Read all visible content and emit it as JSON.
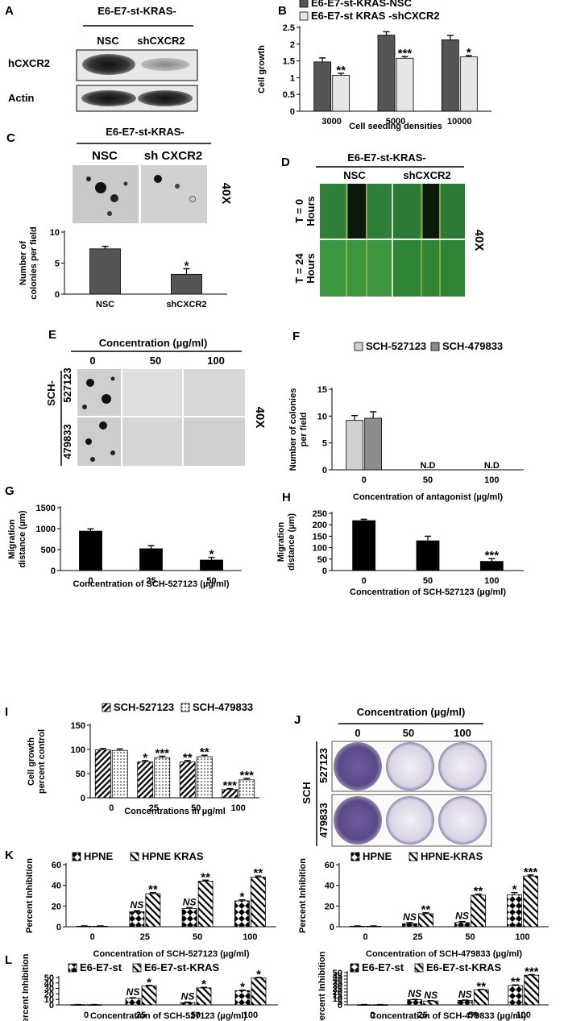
{
  "panels": {
    "A": {
      "letter": "A",
      "header": "E6-E7-st-KRAS-",
      "lanes": [
        "NSC",
        "shCXCR2"
      ],
      "rows": [
        "hCXCR2",
        "Actin"
      ]
    },
    "C": {
      "letter": "C",
      "header": "E6-E7-st-KRAS-",
      "images": [
        "NSC",
        "sh CXCR2"
      ],
      "mag": "40X"
    },
    "D": {
      "letter": "D",
      "header": "E6-E7-st-KRAS-",
      "cols": [
        "NSC",
        "shCXCR2"
      ],
      "row0": [
        "T = 0",
        "Hours"
      ],
      "row1": [
        "T = 24",
        "Hours"
      ],
      "mag": "40X"
    },
    "E": {
      "letter": "E",
      "header": "Concentration (µg/ml)",
      "cols": [
        "0",
        "50",
        "100"
      ],
      "group": "SCH-",
      "rows": [
        "527123",
        "479833"
      ],
      "mag": "40X"
    },
    "J": {
      "letter": "J",
      "header": "Concentration (µg/ml)",
      "cols": [
        "0",
        "50",
        "100"
      ],
      "group": "SCH",
      "rows": [
        "527123",
        "479833"
      ]
    }
  },
  "chart_data": [
    {
      "id": "B",
      "letter": "B",
      "type": "bar",
      "categories": [
        "3000",
        "5000",
        "10000"
      ],
      "series": [
        {
          "name": "E6-E7-st-KRAS-NSC",
          "values": [
            1.47,
            2.27,
            2.13
          ],
          "errors": [
            0.12,
            0.1,
            0.13
          ],
          "color": "#555555"
        },
        {
          "name": "E6-E7-st KRAS -shCXCR2",
          "values": [
            1.07,
            1.58,
            1.62
          ],
          "errors": [
            0.06,
            0.05,
            0.04
          ],
          "color": "#e6e6e6"
        }
      ],
      "ylabel": "Cell growth",
      "xlabel": "Cell seeding densities",
      "ylim": [
        0,
        2.5
      ],
      "yticks": [
        "0",
        "0.5",
        "1",
        "1.5",
        "2",
        "2.5"
      ],
      "annotations": [
        {
          "cat": 0,
          "s": 1,
          "text": "**"
        },
        {
          "cat": 1,
          "s": 1,
          "text": "***"
        },
        {
          "cat": 2,
          "s": 1,
          "text": "*"
        }
      ]
    },
    {
      "id": "C",
      "letter": "C",
      "type": "bar",
      "categories": [
        "NSC",
        "shCXCR2"
      ],
      "series": [
        {
          "values": [
            7.3,
            3.2
          ],
          "errors": [
            0.4,
            0.9
          ],
          "color": "#555555"
        }
      ],
      "ylabel": [
        "Number of",
        "colonies per field"
      ],
      "ylim": [
        0,
        10
      ],
      "yticks": [
        "0",
        "5",
        "10"
      ],
      "annotations": [
        {
          "cat": 1,
          "s": 0,
          "text": "*"
        }
      ]
    },
    {
      "id": "F",
      "letter": "F",
      "type": "bar",
      "categories": [
        "0",
        "50",
        "100"
      ],
      "series": [
        {
          "name": "SCH-527123",
          "values": [
            9.2,
            0,
            0
          ],
          "errors": [
            0.9,
            0,
            0
          ],
          "color": "#d0d0d0"
        },
        {
          "name": "SCH-479833",
          "values": [
            9.6,
            0,
            0
          ],
          "errors": [
            1.2,
            0,
            0
          ],
          "color": "#8c8c8c"
        }
      ],
      "ylabel": [
        "Number of colonies",
        "per field"
      ],
      "xlabel": "Concentration of antagonist (µg/ml)",
      "ylim": [
        0,
        15
      ],
      "yticks": [
        "0",
        "5",
        "10",
        "15"
      ],
      "annotations": [
        {
          "cat": 1,
          "text": "N.D"
        },
        {
          "cat": 2,
          "text": "N.D"
        }
      ]
    },
    {
      "id": "G",
      "letter": "G",
      "type": "bar",
      "categories": [
        "0",
        "25",
        "50"
      ],
      "series": [
        {
          "values": [
            940,
            520,
            250
          ],
          "errors": [
            55,
            75,
            65
          ],
          "color": "#000000"
        }
      ],
      "ylabel": [
        "Migration",
        "distance (µm)"
      ],
      "xlabel": "Concentration of SCH-527123 (µg/ml)",
      "ylim": [
        0,
        1500
      ],
      "yticks": [
        "0",
        "500",
        "1000",
        "1500"
      ],
      "annotations": [
        {
          "cat": 2,
          "s": 0,
          "text": "*"
        }
      ]
    },
    {
      "id": "H",
      "letter": "H",
      "type": "bar",
      "categories": [
        "0",
        "50",
        "100"
      ],
      "series": [
        {
          "values": [
            218,
            130,
            40
          ],
          "errors": [
            6,
            20,
            12
          ],
          "color": "#000000"
        }
      ],
      "ylabel": [
        "Migration",
        "distance (µm)"
      ],
      "xlabel": "Concentration of SCH-527123  (µg/ml)",
      "ylim": [
        0,
        250
      ],
      "yticks": [
        "0",
        "50",
        "100",
        "150",
        "200",
        "250"
      ],
      "annotations": [
        {
          "cat": 2,
          "s": 0,
          "text": "***"
        }
      ]
    },
    {
      "id": "I",
      "letter": "I",
      "type": "bar",
      "categories": [
        "0",
        "25",
        "50",
        "100"
      ],
      "series": [
        {
          "name": "SCH-527123",
          "values": [
            99,
            74,
            74,
            17
          ],
          "errors": [
            3,
            3,
            3,
            2
          ],
          "pattern": "diag"
        },
        {
          "name": "SCH-479833",
          "values": [
            98,
            83,
            85,
            37
          ],
          "errors": [
            3,
            3,
            3,
            3
          ],
          "pattern": "dots"
        }
      ],
      "ylabel": [
        "Cell growth",
        "percent control"
      ],
      "xlabel": "Concentrations in µg/ml",
      "ylim": [
        0,
        150
      ],
      "yticks": [
        "0",
        "50",
        "100",
        "150"
      ],
      "annotations": [
        {
          "cat": 1,
          "s": 0,
          "text": "*"
        },
        {
          "cat": 1,
          "s": 1,
          "text": "***"
        },
        {
          "cat": 2,
          "s": 0,
          "text": "**"
        },
        {
          "cat": 2,
          "s": 1,
          "text": "**"
        },
        {
          "cat": 3,
          "s": 0,
          "text": "***"
        },
        {
          "cat": 3,
          "s": 1,
          "text": "***"
        }
      ]
    },
    {
      "id": "K1",
      "letter": "K",
      "type": "bar",
      "categories": [
        "0",
        "25",
        "50",
        "100"
      ],
      "series": [
        {
          "name": "HPNE",
          "values": [
            0.5,
            14.5,
            17.5,
            25
          ],
          "errors": [
            0.3,
            1,
            1,
            1
          ],
          "pattern": "diamond"
        },
        {
          "name": "HPNE KRAS",
          "values": [
            0.5,
            32,
            44,
            48
          ],
          "errors": [
            0.3,
            1,
            1,
            1
          ],
          "pattern": "diag2"
        }
      ],
      "ylabel": "Percent Inhibition",
      "xlabel": "Concentration of SCH-527123 (µg/ml)",
      "ylim": [
        0,
        60
      ],
      "yticks": [
        "0",
        "20",
        "40",
        "60"
      ],
      "annotations": [
        {
          "cat": 1,
          "s": 0,
          "text": "NS",
          "ns": true
        },
        {
          "cat": 1,
          "s": 1,
          "text": "**"
        },
        {
          "cat": 2,
          "s": 0,
          "text": "NS",
          "ns": true
        },
        {
          "cat": 2,
          "s": 1,
          "text": "**"
        },
        {
          "cat": 3,
          "s": 0,
          "text": "*"
        },
        {
          "cat": 3,
          "s": 1,
          "text": "**"
        }
      ]
    },
    {
      "id": "K2",
      "type": "bar",
      "categories": [
        "0",
        "25",
        "50",
        "100"
      ],
      "series": [
        {
          "name": "HPNE",
          "values": [
            0.5,
            3,
            4,
            31
          ],
          "errors": [
            0.3,
            1,
            1,
            2
          ],
          "pattern": "diamond"
        },
        {
          "name": "HPNE-KRAS",
          "values": [
            0.5,
            12.5,
            30.5,
            49
          ],
          "errors": [
            0.3,
            1,
            1,
            1
          ],
          "pattern": "diag2"
        }
      ],
      "ylabel": "Percent Inhibition",
      "xlabel": "Concentration of SCH-479833 (µg/ml)",
      "ylim": [
        0,
        60
      ],
      "yticks": [
        "0",
        "20",
        "40",
        "60"
      ],
      "annotations": [
        {
          "cat": 1,
          "s": 0,
          "text": "NS",
          "ns": true
        },
        {
          "cat": 1,
          "s": 1,
          "text": "**"
        },
        {
          "cat": 2,
          "s": 0,
          "text": "NS",
          "ns": true
        },
        {
          "cat": 2,
          "s": 1,
          "text": "**"
        },
        {
          "cat": 3,
          "s": 0,
          "text": "*"
        },
        {
          "cat": 3,
          "s": 1,
          "text": "***"
        }
      ]
    },
    {
      "id": "L1",
      "letter": "L",
      "type": "bar",
      "categories": [
        "0",
        "25",
        "50",
        "100"
      ],
      "series": [
        {
          "name": "E6-E7-st",
          "values": [
            0.4,
            12,
            4,
            26
          ],
          "errors": [
            0.2,
            1,
            1,
            1
          ],
          "pattern": "diamond"
        },
        {
          "name": "E6-E7-st-KRAS",
          "values": [
            0.4,
            34.5,
            31,
            49
          ],
          "errors": [
            0.2,
            1,
            1,
            1
          ],
          "pattern": "diag2"
        }
      ],
      "ylabel": "Percent Inhibition",
      "xlabel": "Concentration of SCH-527123 (µg/ml)",
      "ylim": [
        0,
        50
      ],
      "yticks": [
        "0",
        "10",
        "20",
        "30",
        "40",
        "50"
      ],
      "annotations": [
        {
          "cat": 1,
          "s": 0,
          "text": "NS",
          "ns": true
        },
        {
          "cat": 1,
          "s": 1,
          "text": "*"
        },
        {
          "cat": 2,
          "s": 0,
          "text": "NS",
          "ns": true
        },
        {
          "cat": 2,
          "s": 1,
          "text": "*"
        },
        {
          "cat": 3,
          "s": 0,
          "text": "*"
        },
        {
          "cat": 3,
          "s": 1,
          "text": "*"
        }
      ]
    },
    {
      "id": "L2",
      "type": "bar",
      "categories": [
        "0",
        "25",
        "50",
        "100"
      ],
      "series": [
        {
          "name": "E6-E7-st",
          "values": [
            0.3,
            8,
            7,
            30
          ],
          "errors": [
            0.2,
            0.5,
            0.5,
            1
          ],
          "pattern": "diamond"
        },
        {
          "name": "E6-E7-st-KRAS",
          "values": [
            0.3,
            6,
            23.5,
            46
          ],
          "errors": [
            0.2,
            0.5,
            0.5,
            1
          ],
          "pattern": "diag2"
        }
      ],
      "ylabel": "Percent Inhibition",
      "xlabel": "Concentration of SCH-479833 (µg/ml)",
      "ylim": [
        0,
        50
      ],
      "yticks": [
        "0",
        "5",
        "10",
        "15",
        "20",
        "25",
        "30",
        "35",
        "40",
        "45",
        "50"
      ],
      "annotations": [
        {
          "cat": 1,
          "s": 0,
          "text": "NS",
          "ns": true
        },
        {
          "cat": 1,
          "s": 1,
          "text": "NS",
          "ns": true
        },
        {
          "cat": 2,
          "s": 0,
          "text": "NS",
          "ns": true
        },
        {
          "cat": 2,
          "s": 1,
          "text": "**"
        },
        {
          "cat": 3,
          "s": 0,
          "text": "**"
        },
        {
          "cat": 3,
          "s": 1,
          "text": "***"
        }
      ]
    }
  ]
}
